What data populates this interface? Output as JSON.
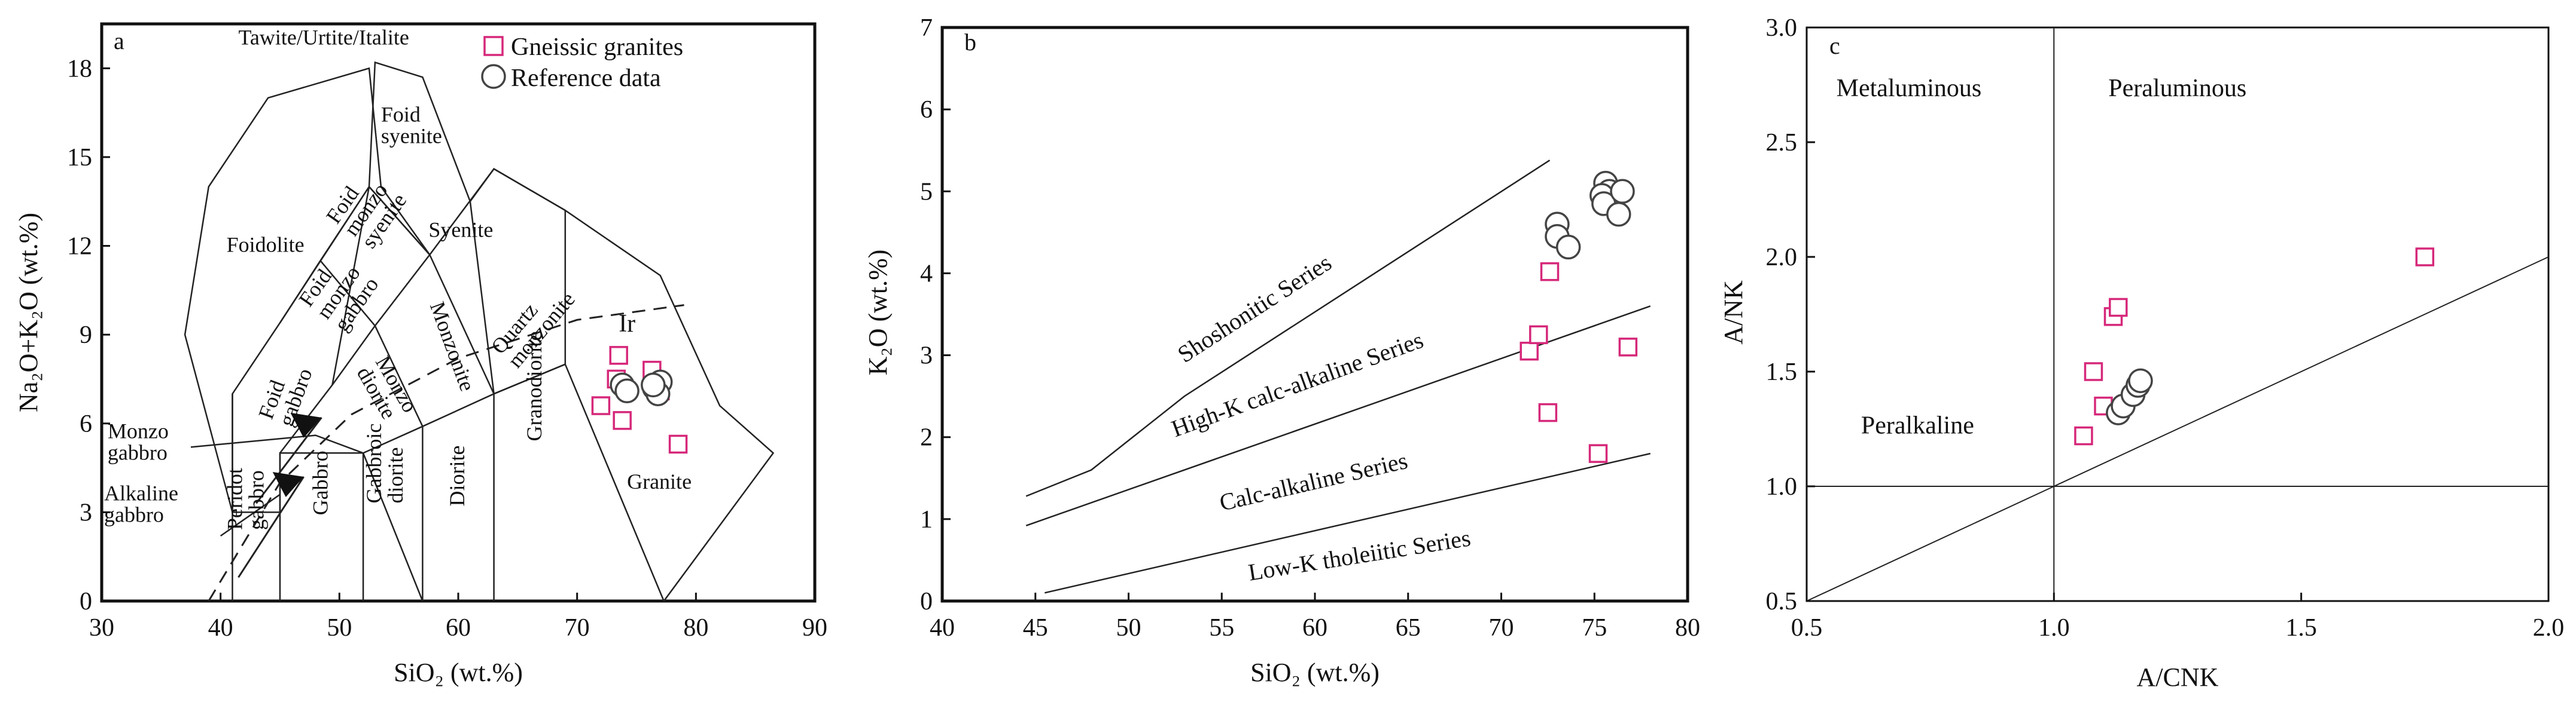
{
  "colors": {
    "gneissic": "#d6287a",
    "reference": "#444444",
    "line": "#222222"
  },
  "chart_data": [
    {
      "id": "a",
      "type": "scatter",
      "panel_label": "a",
      "xlabel": "SiO₂ (wt.%)",
      "ylabel": "Na₂O+K₂O (wt.%)",
      "xlim": [
        30,
        90
      ],
      "ylim": [
        0,
        19.5
      ],
      "xticks": [
        "30",
        "40",
        "50",
        "60",
        "70",
        "80",
        "90"
      ],
      "yticks": [
        "0",
        "3",
        "6",
        "9",
        "12",
        "15",
        "18"
      ],
      "legend": [
        {
          "symbol": "square",
          "label": "Gneissic granites"
        },
        {
          "symbol": "circle",
          "label": "Reference data"
        }
      ],
      "series": [
        {
          "name": "Gneissic granites",
          "symbol": "square",
          "points": [
            [
              72,
              6.6
            ],
            [
              73.3,
              7.5
            ],
            [
              73.5,
              8.3
            ],
            [
              73.8,
              6.1
            ],
            [
              76.3,
              7.8
            ],
            [
              78.5,
              5.3
            ],
            [
              77,
              7.1
            ]
          ]
        },
        {
          "name": "Reference data",
          "symbol": "circle",
          "points": [
            [
              73.8,
              7.3
            ],
            [
              74.2,
              7.1
            ],
            [
              76.5,
              7.2
            ],
            [
              77,
              7.4
            ],
            [
              76.8,
              7.0
            ],
            [
              76.4,
              7.3
            ]
          ]
        }
      ],
      "field_labels": [
        {
          "text": "Tawite/Urtite/Italite"
        },
        {
          "text": "Foid syenite"
        },
        {
          "text": "Foidolite"
        },
        {
          "text": "Foid monzo syenite"
        },
        {
          "text": "Syenite"
        },
        {
          "text": "Foid monzo gabbro"
        },
        {
          "text": "Foid gabbro"
        },
        {
          "text": "Monzo diorite"
        },
        {
          "text": "Monzonite"
        },
        {
          "text": "Quartz monzonite"
        },
        {
          "text": "Ir"
        },
        {
          "text": "Monzo gabbro"
        },
        {
          "text": "Alkaline gabbro"
        },
        {
          "text": "Peridot gabbro"
        },
        {
          "text": "Gabbro"
        },
        {
          "text": "Gabbroic diorite"
        },
        {
          "text": "Diorite"
        },
        {
          "text": "Granodiorite"
        },
        {
          "text": "Granite"
        }
      ]
    },
    {
      "id": "b",
      "type": "scatter",
      "panel_label": "b",
      "xlabel": "SiO₂ (wt.%)",
      "ylabel": "K₂O (wt.%)",
      "xlim": [
        40,
        80
      ],
      "ylim": [
        0,
        7
      ],
      "xticks": [
        "40",
        "45",
        "50",
        "55",
        "60",
        "65",
        "70",
        "75",
        "80"
      ],
      "yticks": [
        "0",
        "1",
        "2",
        "3",
        "4",
        "5",
        "6",
        "7"
      ],
      "series": [
        {
          "name": "Gneissic granites",
          "symbol": "square",
          "points": [
            [
              71.5,
              3.05
            ],
            [
              72,
              3.25
            ],
            [
              72.6,
              4.02
            ],
            [
              72.5,
              2.3
            ],
            [
              75.2,
              1.8
            ],
            [
              76.8,
              3.1
            ]
          ]
        },
        {
          "name": "Reference data",
          "symbol": "circle",
          "points": [
            [
              73,
              4.6
            ],
            [
              73,
              4.45
            ],
            [
              73.6,
              4.32
            ],
            [
              75.6,
              5.1
            ],
            [
              75.8,
              5.0
            ],
            [
              75.4,
              4.95
            ],
            [
              75.5,
              4.85
            ],
            [
              76.5,
              5.0
            ],
            [
              76.3,
              4.72
            ]
          ]
        }
      ],
      "series_labels": [
        {
          "text": "Shoshonitic Series"
        },
        {
          "text": "High-K calc-alkaline Series"
        },
        {
          "text": "Calc-alkaline Series"
        },
        {
          "text": "Low-K tholeiitic Series"
        }
      ],
      "boundaries": [
        {
          "name": "shoshonitic / high-K",
          "points": [
            [
              44.5,
              1.28
            ],
            [
              48,
              1.6
            ],
            [
              53,
              2.5
            ],
            [
              72.6,
              5.38
            ]
          ]
        },
        {
          "name": "high-K / calc-alkaline",
          "points": [
            [
              44.5,
              0.92
            ],
            [
              78,
              3.6
            ]
          ]
        },
        {
          "name": "calc-alkaline / low-K",
          "points": [
            [
              45.5,
              0.1
            ],
            [
              78,
              1.8
            ]
          ]
        }
      ]
    },
    {
      "id": "c",
      "type": "scatter",
      "panel_label": "c",
      "xlabel": "A/CNK",
      "ylabel": "A/NK",
      "xlim": [
        0.5,
        2.0
      ],
      "ylim": [
        0.5,
        3.0
      ],
      "xticks": [
        "0.5",
        "1.0",
        "1.5",
        "2.0"
      ],
      "yticks": [
        "0.5",
        "1.0",
        "1.5",
        "2.0",
        "2.5",
        "3.0"
      ],
      "series": [
        {
          "name": "Gneissic granites",
          "symbol": "square",
          "points": [
            [
              1.06,
              1.22
            ],
            [
              1.08,
              1.5
            ],
            [
              1.1,
              1.35
            ],
            [
              1.12,
              1.74
            ],
            [
              1.13,
              1.78
            ],
            [
              1.75,
              2.0
            ]
          ]
        },
        {
          "name": "Reference data",
          "symbol": "circle",
          "points": [
            [
              1.13,
              1.32
            ],
            [
              1.14,
              1.35
            ],
            [
              1.16,
              1.4
            ],
            [
              1.17,
              1.44
            ],
            [
              1.175,
              1.46
            ]
          ]
        }
      ],
      "region_labels": [
        {
          "text": "Metaluminous"
        },
        {
          "text": "Peraluminous"
        },
        {
          "text": "Peralkaline"
        }
      ]
    }
  ]
}
